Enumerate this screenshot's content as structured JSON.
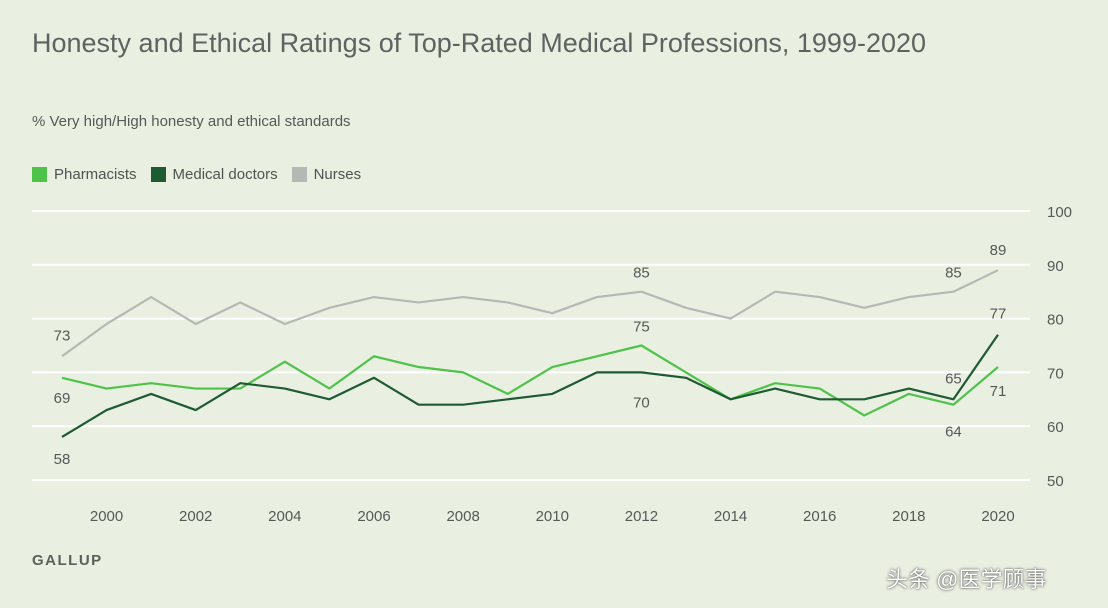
{
  "chart_data": {
    "type": "line",
    "title": "Honesty and Ethical Ratings of Top-Rated Medical Professions, 1999-2020",
    "subtitle": "% Very high/High honesty and ethical standards",
    "x": [
      1999,
      2000,
      2001,
      2002,
      2003,
      2004,
      2005,
      2006,
      2007,
      2008,
      2009,
      2010,
      2011,
      2012,
      2013,
      2014,
      2015,
      2016,
      2017,
      2018,
      2019,
      2020
    ],
    "ylim": [
      50,
      100
    ],
    "yticks": [
      50,
      60,
      70,
      80,
      90,
      100
    ],
    "xticks": [
      2000,
      2002,
      2004,
      2006,
      2008,
      2010,
      2012,
      2014,
      2016,
      2018,
      2020
    ],
    "grid": true,
    "legend": "top-left",
    "series": [
      {
        "name": "Pharmacists",
        "color": "#4fc24a",
        "values": [
          69,
          67,
          68,
          67,
          67,
          72,
          67,
          73,
          71,
          70,
          66,
          71,
          73,
          75,
          70,
          65,
          68,
          67,
          62,
          66,
          64,
          71
        ]
      },
      {
        "name": "Medical doctors",
        "color": "#1e5a32",
        "values": [
          58,
          63,
          66,
          63,
          68,
          67,
          65,
          69,
          64,
          64,
          65,
          66,
          70,
          70,
          69,
          65,
          67,
          65,
          65,
          67,
          65,
          77
        ]
      },
      {
        "name": "Nurses",
        "color": "#b5b9b6",
        "values": [
          73,
          79,
          84,
          79,
          83,
          79,
          82,
          84,
          83,
          84,
          83,
          81,
          84,
          85,
          82,
          80,
          85,
          84,
          82,
          84,
          85,
          89
        ]
      }
    ],
    "data_labels": [
      {
        "series": "Nurses",
        "x": 1999,
        "text": "73"
      },
      {
        "series": "Pharmacists",
        "x": 1999,
        "text": "69"
      },
      {
        "series": "Medical doctors",
        "x": 1999,
        "text": "58"
      },
      {
        "series": "Nurses",
        "x": 2012,
        "text": "85"
      },
      {
        "series": "Pharmacists",
        "x": 2012,
        "text": "75"
      },
      {
        "series": "Medical doctors",
        "x": 2012,
        "text": "70"
      },
      {
        "series": "Nurses",
        "x": 2019,
        "text": "85"
      },
      {
        "series": "Medical doctors",
        "x": 2019,
        "text": "65"
      },
      {
        "series": "Pharmacists",
        "x": 2019,
        "text": "64"
      },
      {
        "series": "Nurses",
        "x": 2020,
        "text": "89"
      },
      {
        "series": "Medical doctors",
        "x": 2020,
        "text": "77"
      },
      {
        "series": "Pharmacists",
        "x": 2020,
        "text": "71"
      }
    ],
    "source": "GALLUP"
  },
  "watermark": "头条 @医学顾事"
}
